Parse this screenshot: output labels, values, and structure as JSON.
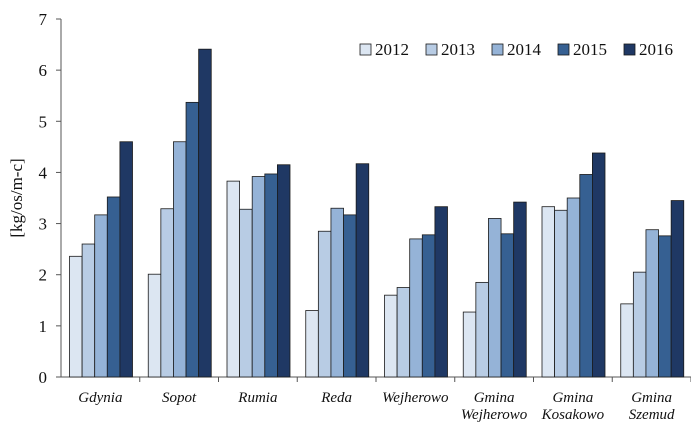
{
  "chart_data": {
    "type": "bar",
    "title": "",
    "xlabel": "",
    "ylabel": "[kg/os/m-c]",
    "ylim": [
      0,
      7
    ],
    "yticks": [
      0,
      1,
      2,
      3,
      4,
      5,
      6,
      7
    ],
    "grid": false,
    "legend_position": "top-right",
    "categories": [
      [
        "Gdynia"
      ],
      [
        "Sopot"
      ],
      [
        "Rumia"
      ],
      [
        "Reda"
      ],
      [
        "Wejherowo"
      ],
      [
        "Gmina",
        "Wejherowo"
      ],
      [
        "Gmina",
        "Kosakowo"
      ],
      [
        "Gmina",
        "Szemud"
      ]
    ],
    "series": [
      {
        "name": "2012",
        "color": "#dce6f2",
        "values": [
          2.36,
          2.01,
          3.83,
          1.3,
          1.6,
          1.27,
          3.33,
          1.43
        ]
      },
      {
        "name": "2013",
        "color": "#b8cce4",
        "values": [
          2.6,
          3.29,
          3.28,
          2.85,
          1.75,
          1.85,
          3.26,
          2.05
        ]
      },
      {
        "name": "2014",
        "color": "#95b3d7",
        "values": [
          3.17,
          4.6,
          3.92,
          3.3,
          2.7,
          3.1,
          3.5,
          2.88
        ]
      },
      {
        "name": "2015",
        "color": "#366092",
        "values": [
          3.52,
          5.37,
          3.97,
          3.17,
          2.78,
          2.8,
          3.96,
          2.76
        ]
      },
      {
        "name": "2016",
        "color": "#1f3864",
        "values": [
          4.6,
          6.41,
          4.15,
          4.17,
          3.33,
          3.42,
          4.38,
          3.45
        ]
      }
    ]
  }
}
